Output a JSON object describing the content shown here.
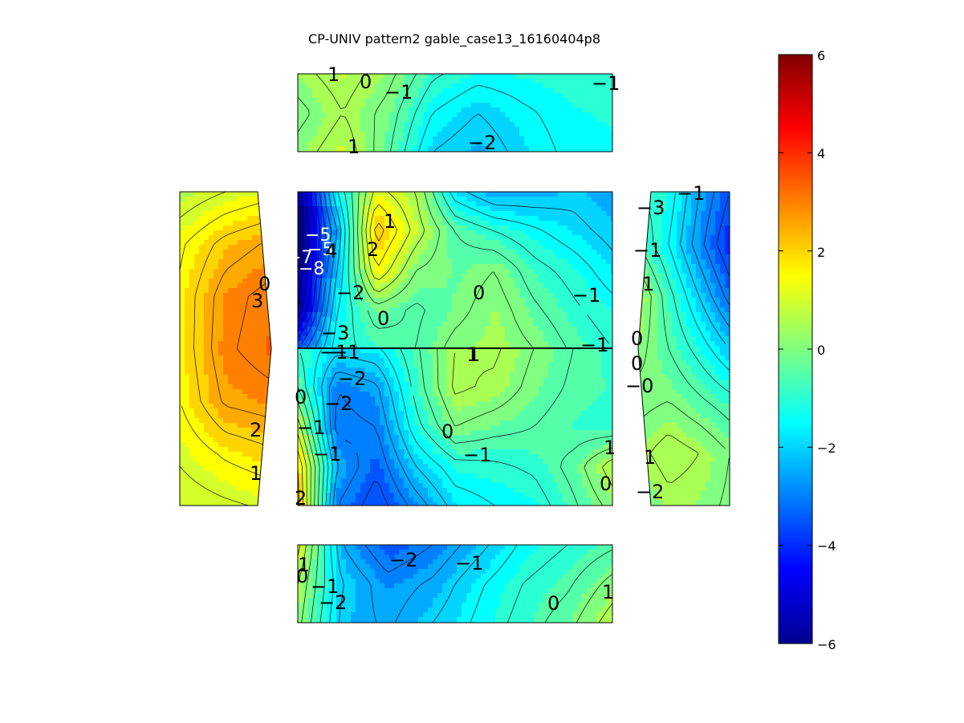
{
  "chart_data": {
    "type": "heatmap",
    "title": "CP-UNIV pattern2 gable_case13_16160404p8",
    "colorbar": {
      "colormap": "jet",
      "range": [
        -6,
        6
      ],
      "ticks": [
        "6",
        "4",
        "2",
        "0",
        "−2",
        "−4",
        "−6"
      ],
      "tick_values": [
        6,
        4,
        2,
        0,
        -2,
        -4,
        -6
      ]
    },
    "panels": [
      {
        "name": "top-face",
        "labels": [
          "1",
          "0",
          "−1",
          "−1",
          "1",
          "−2"
        ],
        "grid": [
          [
            0.3,
            0.8,
            0.2,
            -0.9,
            -1.3,
            -1.2,
            -1.1,
            -1.0
          ],
          [
            -0.2,
            0.5,
            -0.2,
            -1.5,
            -2.0,
            -1.6,
            -1.3,
            -1.2
          ],
          [
            0.2,
            0.9,
            -0.4,
            -2.0,
            -2.4,
            -1.8,
            -1.4,
            -1.3
          ]
        ]
      },
      {
        "name": "left-face",
        "labels": [
          "0",
          "3",
          "2",
          "1"
        ],
        "grid": [
          [
            0.6,
            1.0,
            1.3
          ],
          [
            1.4,
            2.2,
            2.6
          ],
          [
            1.6,
            2.8,
            3.2
          ],
          [
            1.6,
            2.9,
            3.3
          ],
          [
            1.5,
            2.6,
            2.8
          ],
          [
            1.1,
            1.6,
            1.9
          ],
          [
            0.7,
            0.9,
            1.1
          ]
        ]
      },
      {
        "name": "roof-upper",
        "labels": [
          "1",
          "−5",
          "−5",
          "−7",
          "4",
          "−8",
          "2",
          "−2",
          "0",
          "−1",
          "0",
          "−3",
          "−1",
          "1",
          "−1"
        ],
        "grid": [
          [
            -6.0,
            -1.5,
            1.2,
            0.5,
            -1.8,
            -2.5,
            -2.4,
            -2.2,
            -2.5
          ],
          [
            -6.0,
            -2.5,
            2.3,
            0.8,
            -0.5,
            -1.0,
            -1.4,
            -1.8,
            -2.2
          ],
          [
            -6.0,
            -2.0,
            1.5,
            0.0,
            -0.3,
            0.0,
            -0.8,
            -1.2,
            -1.8
          ],
          [
            -5.5,
            -1.5,
            -0.2,
            -0.6,
            -0.2,
            0.3,
            -0.4,
            -0.9,
            -1.3
          ],
          [
            -3.5,
            -1.2,
            -0.8,
            -0.5,
            0.2,
            0.4,
            0.0,
            -0.6,
            -1.0
          ]
        ]
      },
      {
        "name": "roof-lower",
        "labels": [
          "−1",
          "−2",
          "1",
          "−1",
          "0",
          "−2",
          "−1",
          "0",
          "−1",
          "1",
          "−1",
          "0",
          "2"
        ],
        "grid": [
          [
            -1.0,
            -1.8,
            -1.6,
            -0.6,
            0.5,
            0.6,
            0.0,
            -0.5,
            -0.9
          ],
          [
            -0.5,
            -3.0,
            -2.6,
            -0.8,
            0.6,
            0.4,
            -0.2,
            -0.6,
            -0.8
          ],
          [
            0.8,
            -3.2,
            -3.0,
            -1.2,
            0.0,
            -0.3,
            -0.5,
            -0.8,
            -0.9
          ],
          [
            2.0,
            -2.5,
            -3.4,
            -2.0,
            -1.2,
            -1.1,
            -0.9,
            -0.3,
            0.8
          ],
          [
            2.2,
            -3.0,
            -3.8,
            -2.8,
            -1.8,
            -1.5,
            -1.3,
            -0.6,
            0.2
          ]
        ]
      },
      {
        "name": "right-face",
        "labels": [
          "−1",
          "−3",
          "−1",
          "1",
          "0",
          "0",
          "−0",
          "1",
          "−2"
        ],
        "grid": [
          [
            -1.0,
            -1.2,
            -2.5,
            -3.5
          ],
          [
            -0.5,
            -1.5,
            -2.8,
            -4.0
          ],
          [
            0.6,
            -0.8,
            -2.0,
            -3.2
          ],
          [
            0.2,
            -0.5,
            -1.2,
            -2.0
          ],
          [
            -0.2,
            0.0,
            -0.4,
            -0.8
          ],
          [
            0.3,
            0.8,
            0.5,
            0.0
          ],
          [
            -0.2,
            0.3,
            0.2,
            -0.1
          ]
        ]
      },
      {
        "name": "bottom-face",
        "labels": [
          "1",
          "0",
          "−1",
          "−2",
          "−2",
          "−1",
          "0",
          "1"
        ],
        "grid": [
          [
            1.2,
            -2.5,
            -3.5,
            -3.0,
            -2.2,
            -1.4,
            -1.0,
            -0.6
          ],
          [
            0.5,
            -2.0,
            -2.8,
            -2.4,
            -1.6,
            -1.0,
            -0.6,
            0.2
          ],
          [
            0.2,
            -2.2,
            -2.6,
            -2.0,
            -1.4,
            -0.8,
            -0.2,
            0.8
          ]
        ]
      }
    ]
  }
}
